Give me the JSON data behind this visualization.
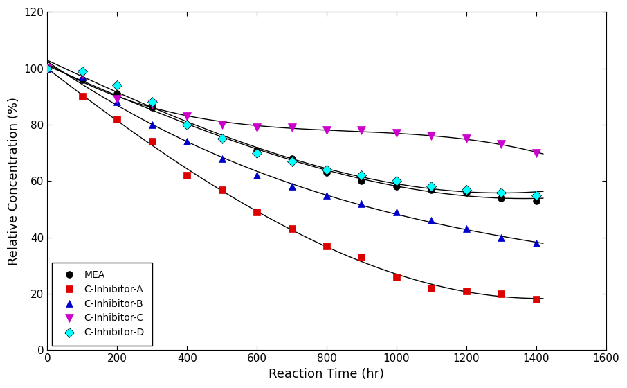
{
  "title": "",
  "xlabel": "Reaction Time (hr)",
  "ylabel": "Relative Concentration (%)",
  "xlim": [
    0,
    1600
  ],
  "ylim": [
    0,
    120
  ],
  "xticks": [
    0,
    200,
    400,
    600,
    800,
    1000,
    1200,
    1400,
    1600
  ],
  "yticks": [
    0,
    20,
    40,
    60,
    80,
    100,
    120
  ],
  "series": [
    {
      "label": "MEA",
      "color": "black",
      "marker": "o",
      "markersize": 7,
      "x": [
        0,
        100,
        200,
        300,
        400,
        500,
        600,
        700,
        800,
        900,
        1000,
        1100,
        1200,
        1300,
        1400
      ],
      "y": [
        100,
        96,
        91,
        86,
        80,
        75,
        71,
        68,
        63,
        60,
        58,
        57,
        56,
        54,
        53
      ]
    },
    {
      "label": "C-Inhibitor-A",
      "color": "#DD0000",
      "marker": "s",
      "markersize": 7,
      "x": [
        0,
        100,
        200,
        300,
        400,
        500,
        600,
        700,
        800,
        900,
        1000,
        1100,
        1200,
        1300,
        1400
      ],
      "y": [
        100,
        90,
        82,
        74,
        62,
        57,
        49,
        43,
        37,
        33,
        26,
        22,
        21,
        20,
        18
      ]
    },
    {
      "label": "C-Inhibitor-B",
      "color": "#0000CC",
      "marker": "^",
      "markersize": 7,
      "x": [
        0,
        100,
        200,
        300,
        400,
        500,
        600,
        700,
        800,
        900,
        1000,
        1100,
        1200,
        1300,
        1400
      ],
      "y": [
        100,
        97,
        88,
        80,
        74,
        68,
        62,
        58,
        55,
        52,
        49,
        46,
        43,
        40,
        38
      ]
    },
    {
      "label": "C-Inhibitor-C",
      "color": "#CC00CC",
      "marker": "v",
      "markersize": 9,
      "x": [
        0,
        100,
        200,
        300,
        400,
        500,
        600,
        700,
        800,
        900,
        1000,
        1100,
        1200,
        1300,
        1400
      ],
      "y": [
        100,
        98,
        89,
        87,
        83,
        80,
        79,
        79,
        78,
        78,
        77,
        76,
        75,
        73,
        70
      ]
    },
    {
      "label": "C-Inhibitor-D",
      "color": "cyan",
      "marker": "D",
      "markersize": 7,
      "x": [
        0,
        100,
        200,
        300,
        400,
        500,
        600,
        700,
        800,
        900,
        1000,
        1100,
        1200,
        1300,
        1400
      ],
      "y": [
        100,
        99,
        94,
        88,
        80,
        75,
        70,
        67,
        64,
        62,
        60,
        58,
        57,
        56,
        55
      ]
    }
  ],
  "background_color": "#ffffff",
  "legend_loc": "lower left",
  "legend_fontsize": 10,
  "axis_fontsize": 13,
  "tick_fontsize": 11
}
